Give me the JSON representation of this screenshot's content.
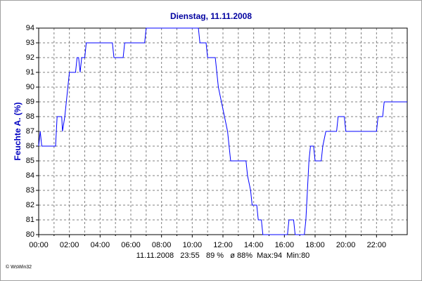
{
  "chart_data": {
    "type": "line",
    "title": "Dienstag, 11.11.2008",
    "ylabel": "Feuchte A. (%)",
    "footer": "11.11.2008   23:55   89 %   ø 88%  Max:94  Min:80",
    "credit": "© WsWin32",
    "x": [
      0,
      0.1,
      0.2,
      1.1,
      1.2,
      1.5,
      1.55,
      1.7,
      1.8,
      1.9,
      2.0,
      2.4,
      2.5,
      2.6,
      2.7,
      2.8,
      3.0,
      3.1,
      4.8,
      4.9,
      5.5,
      5.6,
      6.9,
      7.0,
      10.4,
      10.5,
      10.9,
      11.0,
      11.5,
      11.6,
      11.7,
      11.9,
      12.1,
      12.3,
      12.4,
      12.5,
      13.5,
      13.6,
      13.8,
      13.9,
      14.2,
      14.3,
      14.5,
      14.6,
      16.2,
      16.3,
      16.6,
      16.7,
      17.3,
      17.4,
      17.6,
      17.7,
      17.9,
      18.0,
      18.4,
      18.5,
      18.7,
      19.4,
      19.5,
      19.9,
      20.0,
      22.0,
      22.1,
      22.4,
      22.5,
      24
    ],
    "series": [
      {
        "name": "Feuchte A.",
        "color": "#0000ff",
        "values": [
          86,
          87,
          86,
          86,
          88,
          88,
          87,
          88,
          89,
          90,
          91,
          91,
          92,
          92,
          91,
          92,
          92,
          93,
          93,
          92,
          92,
          93,
          93,
          94,
          94,
          93,
          93,
          92,
          92,
          91,
          90,
          89,
          88,
          87,
          86,
          85,
          85,
          84,
          83,
          82,
          82,
          81,
          81,
          80,
          80,
          81,
          81,
          80,
          80,
          81,
          85,
          86,
          86,
          85,
          85,
          86,
          87,
          87,
          88,
          88,
          87,
          87,
          88,
          88,
          89,
          89
        ]
      }
    ],
    "xlim": [
      0,
      24
    ],
    "xticks": [
      {
        "value": 0,
        "label": "00:00"
      },
      {
        "value": 2,
        "label": "02:00"
      },
      {
        "value": 4,
        "label": "04:00"
      },
      {
        "value": 6,
        "label": "06:00"
      },
      {
        "value": 8,
        "label": "08:00"
      },
      {
        "value": 10,
        "label": "10:00"
      },
      {
        "value": 12,
        "label": "12:00"
      },
      {
        "value": 14,
        "label": "14:00"
      },
      {
        "value": 16,
        "label": "16:00"
      },
      {
        "value": 18,
        "label": "18:00"
      },
      {
        "value": 20,
        "label": "20:00"
      },
      {
        "value": 22,
        "label": "22:00"
      }
    ],
    "xminorticks": [
      1,
      3,
      5,
      7,
      9,
      11,
      13,
      15,
      17,
      19,
      21,
      23
    ],
    "ylim": [
      80,
      94
    ],
    "yticks": [
      80,
      81,
      82,
      83,
      84,
      85,
      86,
      87,
      88,
      89,
      90,
      91,
      92,
      93,
      94
    ],
    "grid": true
  }
}
